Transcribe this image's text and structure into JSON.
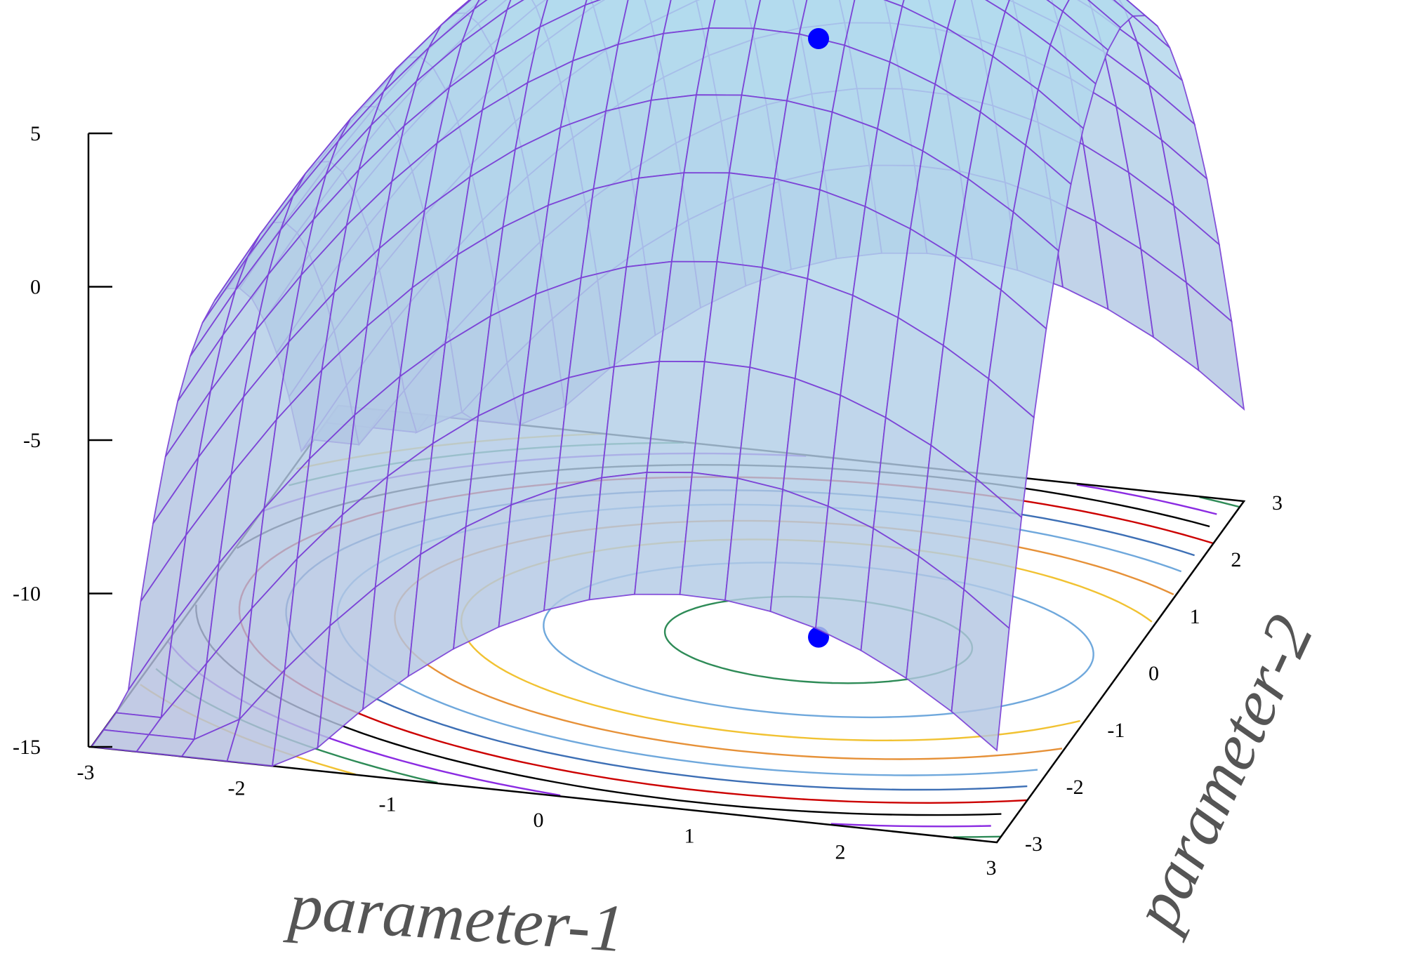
{
  "chart_data": {
    "type": "surface",
    "xlabel": "parameter-1",
    "ylabel": "parameter-2",
    "zlabel": "",
    "xlim": [
      -3,
      3
    ],
    "ylim": [
      -3,
      3
    ],
    "zlim": [
      -15,
      5
    ],
    "xticks": [
      "-3",
      "-2",
      "-1",
      "0",
      "1",
      "2",
      "3"
    ],
    "yticks": [
      "-3",
      "-2",
      "-1",
      "0",
      "1",
      "2",
      "3"
    ],
    "zticks": [
      "5",
      "0",
      "-5",
      "-10",
      "-15"
    ],
    "surface": {
      "function": "z = 10 - (x - 1)^2 - 2*y^2",
      "grid_resolution": 0.3,
      "fill_color": "#bfe3f2",
      "mesh_color": "#7a3fd6"
    },
    "maximum_point": {
      "x": 1,
      "y": 0,
      "z": 10,
      "color": "#0000ff"
    },
    "contour_colors": [
      "#2e8b57",
      "#6fa8dc",
      "#f1c232",
      "#e69138",
      "#6fa8dc",
      "#3d6fb5",
      "#cc0000",
      "#000000",
      "#8b2be2",
      "#2e8b57",
      "#f1c232"
    ]
  }
}
